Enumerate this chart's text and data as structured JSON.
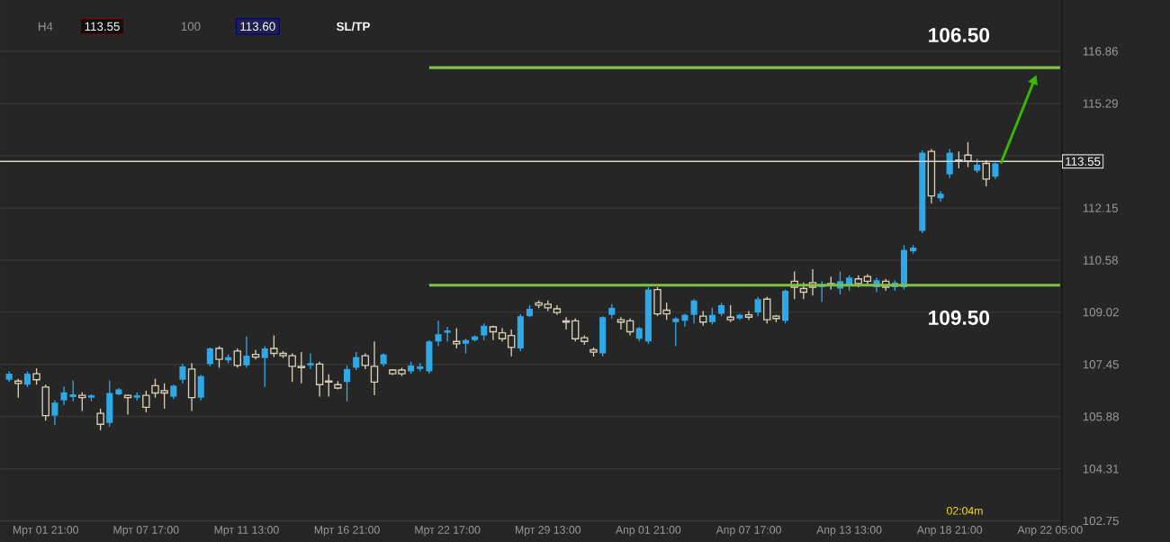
{
  "chart_data": {
    "type": "candlestick",
    "categories": [
      null,
      null,
      null,
      null,
      "Мрт 01 21:00",
      null,
      null,
      null,
      null,
      null,
      null,
      null,
      null,
      null,
      null,
      "Мрт 07 17:00",
      null,
      null,
      null,
      null,
      null,
      null,
      null,
      null,
      null,
      null,
      "Мрт 11 13:00",
      null,
      null,
      null,
      null,
      null,
      null,
      null,
      null,
      null,
      null,
      "Мрт 16 21:00",
      null,
      null,
      null,
      null,
      null,
      null,
      null,
      null,
      null,
      null,
      "Мрт 22 17:00",
      null,
      null,
      null,
      null,
      null,
      null,
      null,
      null,
      null,
      null,
      "Мрт 29 13:00",
      null,
      null,
      null,
      null,
      null,
      null,
      null,
      null,
      null,
      null,
      "Апр 01 21:00",
      null,
      null,
      null,
      null,
      null,
      null,
      null,
      null,
      null,
      null,
      "Апр 07 17:00",
      null,
      null,
      null,
      null,
      null,
      null,
      null,
      null,
      null,
      null,
      "Апр 13 13:00",
      null,
      null,
      null,
      null,
      null,
      null,
      null,
      null,
      null,
      null,
      "Апр 18 21:00",
      null,
      null,
      null,
      null,
      null,
      null,
      null,
      null,
      null,
      null,
      "Апр 22 05:00"
    ],
    "ohlc": [
      [
        106.99,
        107.24,
        106.92,
        107.17
      ],
      [
        106.95,
        107.02,
        106.45,
        106.88
      ],
      [
        106.84,
        107.24,
        106.77,
        107.17
      ],
      [
        107.17,
        107.33,
        106.84,
        106.99
      ],
      [
        106.77,
        106.84,
        105.76,
        105.91
      ],
      [
        105.91,
        106.37,
        105.62,
        106.3
      ],
      [
        106.37,
        106.79,
        106.23,
        106.61
      ],
      [
        106.47,
        106.97,
        106.34,
        106.55
      ],
      [
        106.52,
        106.61,
        106.05,
        106.45
      ],
      [
        106.45,
        106.55,
        106.34,
        106.52
      ],
      [
        105.98,
        106.12,
        105.47,
        105.65
      ],
      [
        105.69,
        106.97,
        105.58,
        106.59
      ],
      [
        106.55,
        106.74,
        106.52,
        106.7
      ],
      [
        106.52,
        106.55,
        105.94,
        106.45
      ],
      [
        106.45,
        106.61,
        106.37,
        106.52
      ],
      [
        106.52,
        106.66,
        106.01,
        106.16
      ],
      [
        106.81,
        107.02,
        106.45,
        106.59
      ],
      [
        106.66,
        106.88,
        106.12,
        106.59
      ],
      [
        106.48,
        106.84,
        106.41,
        106.81
      ],
      [
        106.99,
        107.46,
        106.88,
        107.39
      ],
      [
        107.31,
        107.49,
        106.05,
        106.45
      ],
      [
        106.45,
        107.13,
        106.37,
        107.1
      ],
      [
        107.46,
        107.96,
        107.39,
        107.93
      ],
      [
        107.93,
        108.0,
        107.35,
        107.6
      ],
      [
        107.57,
        107.75,
        107.49,
        107.67
      ],
      [
        107.85,
        107.93,
        107.35,
        107.42
      ],
      [
        107.42,
        108.29,
        107.35,
        107.71
      ],
      [
        107.75,
        107.89,
        107.6,
        107.67
      ],
      [
        107.64,
        108.0,
        106.77,
        107.93
      ],
      [
        107.93,
        108.32,
        107.67,
        107.78
      ],
      [
        107.78,
        107.85,
        107.64,
        107.71
      ],
      [
        107.71,
        107.78,
        106.92,
        107.39
      ],
      [
        107.39,
        107.82,
        106.88,
        107.35
      ],
      [
        107.42,
        107.78,
        107.31,
        107.49
      ],
      [
        107.46,
        107.53,
        106.48,
        106.84
      ],
      [
        106.95,
        107.15,
        106.48,
        106.92
      ],
      [
        106.84,
        106.95,
        106.7,
        106.74
      ],
      [
        106.92,
        107.42,
        106.34,
        107.31
      ],
      [
        107.35,
        107.82,
        107.28,
        107.67
      ],
      [
        107.71,
        107.78,
        107.31,
        107.42
      ],
      [
        107.39,
        108.14,
        106.52,
        106.92
      ],
      [
        107.46,
        107.78,
        107.39,
        107.75
      ],
      [
        107.28,
        107.31,
        107.13,
        107.17
      ],
      [
        107.28,
        107.35,
        107.1,
        107.17
      ],
      [
        107.24,
        107.53,
        107.17,
        107.42
      ],
      [
        107.31,
        107.49,
        107.24,
        107.39
      ],
      [
        107.24,
        108.18,
        107.17,
        108.14
      ],
      [
        108.14,
        108.76,
        108.0,
        108.36
      ],
      [
        108.4,
        108.58,
        108.14,
        108.47
      ],
      [
        108.14,
        108.54,
        107.93,
        108.07
      ],
      [
        108.07,
        108.22,
        107.78,
        108.18
      ],
      [
        108.18,
        108.32,
        108.14,
        108.29
      ],
      [
        108.32,
        108.68,
        108.18,
        108.61
      ],
      [
        108.58,
        108.61,
        108.18,
        108.43
      ],
      [
        108.4,
        108.54,
        108.14,
        108.22
      ],
      [
        108.32,
        108.5,
        107.69,
        107.96
      ],
      [
        107.93,
        108.96,
        107.85,
        108.9
      ],
      [
        108.9,
        109.23,
        108.87,
        109.12
      ],
      [
        109.3,
        109.37,
        109.14,
        109.23
      ],
      [
        109.26,
        109.37,
        109.05,
        109.15
      ],
      [
        109.12,
        109.23,
        108.94,
        109.01
      ],
      [
        108.76,
        108.87,
        108.5,
        108.72
      ],
      [
        108.76,
        108.83,
        108.14,
        108.22
      ],
      [
        108.25,
        108.32,
        108.04,
        108.14
      ],
      [
        107.89,
        107.96,
        107.69,
        107.82
      ],
      [
        107.78,
        108.9,
        107.69,
        108.87
      ],
      [
        108.94,
        109.26,
        108.83,
        109.15
      ],
      [
        108.79,
        108.87,
        108.5,
        108.72
      ],
      [
        108.76,
        108.83,
        108.32,
        108.43
      ],
      [
        108.22,
        108.58,
        108.14,
        108.54
      ],
      [
        108.14,
        109.77,
        108.07,
        109.7
      ],
      [
        109.7,
        109.77,
        108.9,
        108.97
      ],
      [
        109.08,
        109.3,
        108.79,
        108.97
      ],
      [
        108.72,
        108.87,
        108.0,
        108.83
      ],
      [
        108.76,
        108.97,
        108.58,
        108.94
      ],
      [
        108.94,
        109.41,
        108.68,
        109.37
      ],
      [
        108.9,
        109.05,
        108.61,
        108.72
      ],
      [
        108.72,
        109.15,
        108.65,
        108.94
      ],
      [
        108.97,
        109.3,
        108.9,
        109.23
      ],
      [
        108.87,
        109.23,
        108.72,
        108.79
      ],
      [
        108.83,
        108.97,
        108.79,
        108.94
      ],
      [
        108.94,
        109.05,
        108.79,
        108.87
      ],
      [
        109.01,
        109.48,
        108.9,
        109.41
      ],
      [
        109.41,
        109.48,
        108.68,
        108.79
      ],
      [
        108.9,
        108.94,
        108.72,
        108.83
      ],
      [
        108.76,
        109.7,
        108.68,
        109.66
      ],
      [
        109.95,
        110.24,
        109.41,
        109.77
      ],
      [
        109.73,
        109.91,
        109.41,
        109.62
      ],
      [
        109.91,
        110.31,
        109.52,
        109.77
      ],
      [
        109.77,
        109.95,
        109.33,
        109.84
      ],
      [
        109.88,
        110.09,
        109.7,
        109.84
      ],
      [
        109.73,
        110.24,
        109.55,
        109.95
      ],
      [
        109.8,
        110.13,
        109.66,
        110.06
      ],
      [
        110.02,
        110.13,
        109.77,
        109.88
      ],
      [
        110.09,
        110.16,
        109.84,
        109.95
      ],
      [
        109.77,
        110.06,
        109.62,
        109.98
      ],
      [
        109.95,
        110.02,
        109.66,
        109.77
      ],
      [
        109.77,
        109.98,
        109.66,
        109.91
      ],
      [
        109.77,
        111.03,
        109.7,
        110.89
      ],
      [
        110.85,
        111.03,
        110.78,
        110.96
      ],
      [
        111.46,
        113.88,
        111.39,
        113.81
      ],
      [
        113.85,
        113.92,
        112.29,
        112.51
      ],
      [
        112.44,
        112.66,
        112.33,
        112.58
      ],
      [
        113.16,
        113.92,
        113.05,
        113.81
      ],
      [
        113.59,
        113.85,
        113.34,
        113.56
      ],
      [
        113.74,
        114.13,
        113.38,
        113.56
      ],
      [
        113.27,
        113.63,
        113.2,
        113.45
      ],
      [
        113.49,
        113.59,
        112.8,
        113.02
      ],
      [
        113.09,
        113.52,
        113.02,
        113.49
      ],
      null,
      null,
      null,
      null,
      null,
      null
    ],
    "ylim": [
      102.6,
      118.4
    ],
    "yticks": [
      116.86,
      115.29,
      {
        "value": 113.72,
        "label": null
      },
      112.15,
      110.58,
      109.02,
      107.45,
      105.88,
      104.31,
      102.75
    ],
    "grid": "y",
    "ref_lines": [
      {
        "axis": "y",
        "value": 113.55,
        "label": "113.55",
        "color": "#d8d6cc"
      },
      {
        "axis": "y",
        "value": 116.37,
        "color": "#7dc242"
      },
      {
        "axis": "y",
        "value": 109.83,
        "color": "#7dc242"
      }
    ],
    "annotations": [
      "H4",
      "113.55",
      "100",
      "113.60",
      "SL/TP",
      "106.50",
      "109.50",
      "02:04m"
    ]
  }
}
